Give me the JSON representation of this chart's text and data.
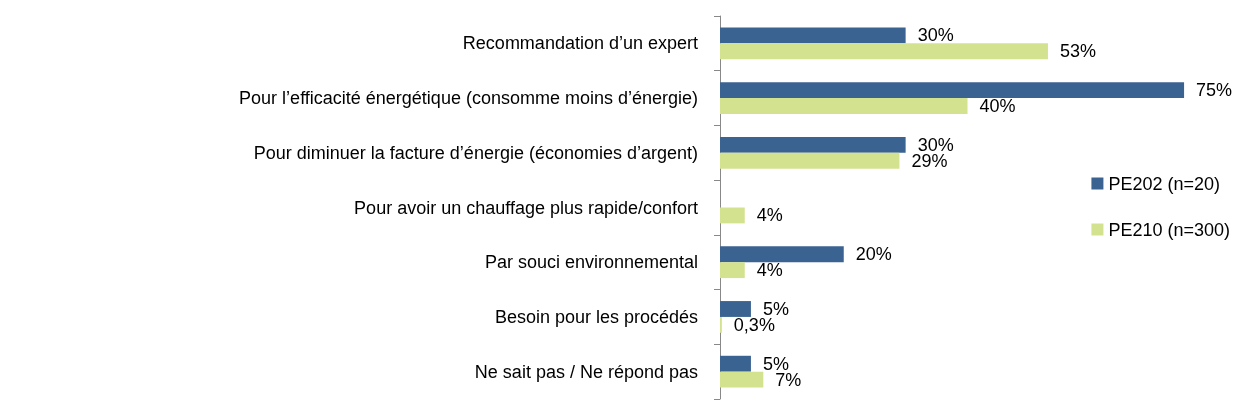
{
  "chart_data": {
    "type": "bar",
    "orientation": "horizontal",
    "legend": "right",
    "categories": [
      "Recommandation d’un expert",
      "Pour l’efficacité énergétique (consomme moins d’énergie)",
      "Pour diminuer la facture d’énergie (économies d’argent)",
      "Pour avoir un chauffage plus rapide/confort",
      "Par souci environnemental",
      "Besoin pour les procédés",
      "Ne sait pas / Ne répond pas"
    ],
    "series": [
      {
        "name": "PE202 (n=20)",
        "color": "#3b6392",
        "values": [
          30,
          75,
          30,
          null,
          20,
          5,
          5
        ],
        "value_labels": [
          "30%",
          "75%",
          "30%",
          null,
          "20%",
          "5%",
          "5%"
        ]
      },
      {
        "name": "PE210 (n=300)",
        "color": "#d3e28f",
        "values": [
          53,
          40,
          29,
          4,
          4,
          0.3,
          7
        ],
        "value_labels": [
          "53%",
          "40%",
          "29%",
          "4%",
          "4%",
          "0,3%",
          "7%"
        ]
      }
    ]
  }
}
